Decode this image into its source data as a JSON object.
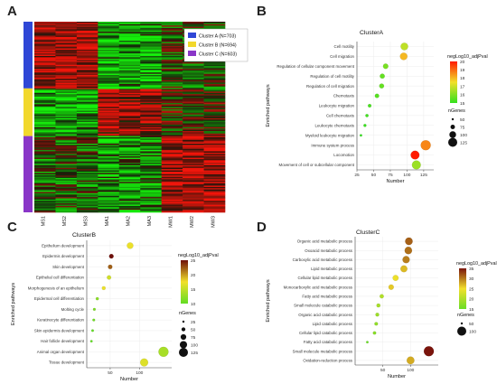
{
  "panel_labels": [
    "A",
    "B",
    "C",
    "D"
  ],
  "heatmap": {
    "columns": [
      "MS1",
      "MS2",
      "MS3",
      "MA1",
      "MA2",
      "MA3",
      "MW1",
      "MW2",
      "MW3"
    ],
    "clusters": [
      {
        "label": "Cluster A (N=703)",
        "color": "#2f47d6"
      },
      {
        "label": "Cluster B (N=694)",
        "color": "#f2d82c"
      },
      {
        "label": "Cluster C (N=603)",
        "color": "#8a36c8"
      }
    ]
  },
  "chart_data": [
    {
      "type": "scatter",
      "title": "ClusterA",
      "xlabel": "Number",
      "ylabel": "Enriched pathways",
      "xlim": [
        25,
        140
      ],
      "xticks": [
        25,
        50,
        75,
        100,
        125
      ],
      "categories": [
        "Cell motility",
        "Cell migration",
        "Regulation of cellular component movement",
        "Regulation of cell motility",
        "Regulation of cell migration",
        "Chemotaxis",
        "Leukocyte migration",
        "Cell chemotaxis",
        "Leukocyte chemotaxis",
        "Myeloid leukocyte migration",
        "Immune system process",
        "Locomotion",
        "Movement of cell or subcellular component"
      ],
      "x": [
        96,
        95,
        68,
        63,
        62,
        55,
        44,
        40,
        37,
        31,
        128,
        112,
        114
      ],
      "color_value": [
        16.5,
        17.8,
        15.5,
        15.2,
        15.2,
        15,
        14.8,
        14.7,
        14.6,
        14.5,
        18.5,
        20,
        16
      ],
      "color_legend": {
        "title": "negLog10_adjPval",
        "ticks": [
          "20",
          "19",
          "18",
          "17",
          "16",
          "15"
        ],
        "high": "#ff1a00",
        "low": "#33e01e"
      },
      "size_legend": {
        "title": "nGenes",
        "ticks": [
          "50",
          "75",
          "100",
          "125"
        ]
      }
    },
    {
      "type": "scatter",
      "title": "ClusterB",
      "xlabel": "Number",
      "ylabel": "Enriched pathways",
      "xlim": [
        10,
        155
      ],
      "xticks": [
        50,
        100
      ],
      "categories": [
        "Epithelium development",
        "Epidermis development",
        "Skin development",
        "Epithelial cell differentiation",
        "Morphogenesis of an epithelium",
        "Epidermal cell differentiation",
        "Molting cycle",
        "Keratinocyte differentiation",
        "Skin epidermis development",
        "Hair follicle development",
        "Animal organ development",
        "Tissue development"
      ],
      "x": [
        84,
        52,
        50,
        48,
        39,
        28,
        23,
        22,
        20,
        18,
        141,
        108
      ],
      "color_value": [
        20,
        31,
        27,
        18,
        20,
        13,
        12,
        11,
        10,
        10,
        15,
        19
      ],
      "color_legend": {
        "title": "negLog10_adjPval",
        "ticks": [
          "25",
          "20",
          "15",
          "10"
        ],
        "high": "#6e0f0a",
        "low": "#62dd24"
      },
      "size_legend": {
        "title": "nGenes",
        "ticks": [
          "25",
          "50",
          "75",
          "100",
          "125"
        ]
      }
    },
    {
      "type": "scatter",
      "title": "ClusterC",
      "xlabel": "Number",
      "ylabel": "Enriched pathways",
      "xlim": [
        0,
        150
      ],
      "xticks": [
        50,
        100
      ],
      "categories": [
        "Organic acid metabolic process",
        "Oxoacid metabolic process",
        "Carboxylic acid metabolic process",
        "Lipid metabolic process",
        "Cellular lipid metabolic process",
        "Monocarboxylic acid metabolic process",
        "Fatty acid metabolic process",
        "Small molecule catabolic process",
        "Organic acid catabolic process",
        "Lipid catabolic process",
        "Cellular lipid catabolic process",
        "Fatty acid catabolic process",
        "Small molecule metabolic process",
        "Oxidation-reduction process"
      ],
      "x": [
        97,
        96,
        92,
        88,
        73,
        65,
        48,
        42,
        40,
        38,
        35,
        22,
        133,
        100
      ],
      "color_value": [
        33,
        32,
        31,
        27,
        24,
        26,
        18,
        17,
        16,
        15,
        14,
        11,
        38,
        28
      ],
      "color_legend": {
        "title": "negLog10_adjPval",
        "ticks": [
          "35",
          "30",
          "25",
          "20",
          "15"
        ],
        "high": "#7a140c",
        "low": "#6add26"
      },
      "size_legend": {
        "title": "nGenes",
        "ticks": [
          "50",
          "100"
        ]
      }
    }
  ]
}
